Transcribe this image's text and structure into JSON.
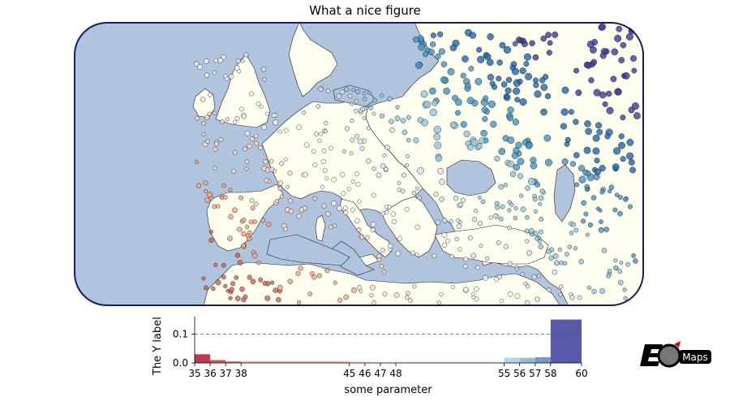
{
  "title": "What a nice figure",
  "colors": {
    "ocean": "#b0c4de",
    "land": "#fffff0",
    "frame": "#1a1a6e",
    "coast": "#222222"
  },
  "colormap": [
    "#9e0142",
    "#d53e4f",
    "#f46d43",
    "#fdae61",
    "#fee08b",
    "#ffffbf",
    "#e6f598",
    "#abdda4",
    "#66c2a5",
    "#3288bd",
    "#5e4fa2"
  ],
  "colormap_display": [
    "#b2182b",
    "#d6604d",
    "#f4a582",
    "#fddbc7",
    "#f7f7f7",
    "#d1e5f0",
    "#92c5de",
    "#4393c3",
    "#2166ac",
    "#3b3d9a"
  ],
  "colorbar": {
    "ylabel": "The Y label",
    "xlabel": "some parameter",
    "yticks": [
      "0.0",
      "0.1"
    ],
    "xticks": [
      "35",
      "36",
      "37",
      "38",
      "45",
      "46",
      "47",
      "48",
      "55",
      "56",
      "57",
      "58",
      "60"
    ]
  },
  "chart_data": {
    "type": "bar",
    "title": "",
    "xlabel": "some parameter",
    "ylabel": "The Y label",
    "ylim": [
      0,
      0.16
    ],
    "bins": [
      {
        "from": 35,
        "to": 36,
        "value": 0.03,
        "color": "#b2182b"
      },
      {
        "from": 36,
        "to": 37,
        "value": 0.01,
        "color": "#c23b3b"
      },
      {
        "from": 37,
        "to": 38,
        "value": 0.006,
        "color": "#d6604d"
      },
      {
        "from": 38,
        "to": 45,
        "value": 0.006,
        "color": "#f4a582"
      },
      {
        "from": 45,
        "to": 46,
        "value": 0.006,
        "color": "#fddbc7"
      },
      {
        "from": 46,
        "to": 47,
        "value": 0.005,
        "color": "#fee8c8"
      },
      {
        "from": 47,
        "to": 48,
        "value": 0.005,
        "color": "#eaf3f8"
      },
      {
        "from": 48,
        "to": 55,
        "value": 0.005,
        "color": "#d6eef4"
      },
      {
        "from": 55,
        "to": 56,
        "value": 0.018,
        "color": "#a8cfe3"
      },
      {
        "from": 56,
        "to": 57,
        "value": 0.018,
        "color": "#7fb1d3"
      },
      {
        "from": 57,
        "to": 58,
        "value": 0.02,
        "color": "#5d88c0"
      },
      {
        "from": 58,
        "to": 60,
        "value": 0.15,
        "color": "#3b3d9a"
      }
    ],
    "reference_line": 0.1
  },
  "logo": {
    "text": "Maps"
  }
}
